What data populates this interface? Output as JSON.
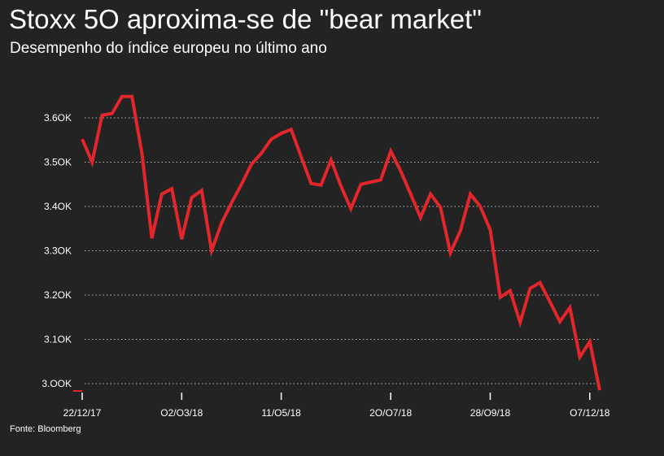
{
  "header": {
    "title": "Stoxx 5O aproxima-se de \"bear market\"",
    "subtitle": "Desempenho do índice europeu no último ano"
  },
  "footer": {
    "source": "Fonte: Bloomberg"
  },
  "colors": {
    "background": "#232323",
    "line": "#e3262b",
    "grid": "#bbbbbb",
    "text": "#ffffff"
  },
  "chart_data": {
    "type": "line",
    "title": "Stoxx 5O aproxima-se de \"bear market\"",
    "subtitle": "Desempenho do índice europeu no último ano",
    "xlabel": "",
    "ylabel": "",
    "ylim": [
      3000,
      3650
    ],
    "grid": true,
    "legend": "none",
    "y_ticks": [
      {
        "value": 3000,
        "label": "3.OOK"
      },
      {
        "value": 3100,
        "label": "3.1OK"
      },
      {
        "value": 3200,
        "label": "3.2OK"
      },
      {
        "value": 3300,
        "label": "3.3OK"
      },
      {
        "value": 3400,
        "label": "3.4OK"
      },
      {
        "value": 3500,
        "label": "3.5OK"
      },
      {
        "value": 3600,
        "label": "3.6OK"
      }
    ],
    "x_ticks": [
      {
        "index": 0,
        "label": "22/12/17"
      },
      {
        "index": 10,
        "label": "O2/O3/18"
      },
      {
        "index": 20,
        "label": "11/O5/18"
      },
      {
        "index": 31,
        "label": "2O/O7/18"
      },
      {
        "index": 41,
        "label": "28/O9/18"
      },
      {
        "index": 51,
        "label": "O7/12/18"
      }
    ],
    "series": [
      {
        "values": [
          3552,
          3500,
          3606,
          3610,
          3648,
          3648,
          3520,
          3328,
          3428,
          3440,
          3326,
          3420,
          3436,
          3300,
          3362,
          3408,
          3450,
          3495,
          3520,
          3552,
          3565,
          3574,
          3512,
          3452,
          3448,
          3505,
          3446,
          3395,
          3450,
          3455,
          3460,
          3525,
          3480,
          3428,
          3375,
          3428,
          3398,
          3295,
          3345,
          3428,
          3400,
          3347,
          3195,
          3210,
          3138,
          3215,
          3228,
          3185,
          3140,
          3172,
          3060,
          3095,
          2985
        ]
      }
    ]
  }
}
